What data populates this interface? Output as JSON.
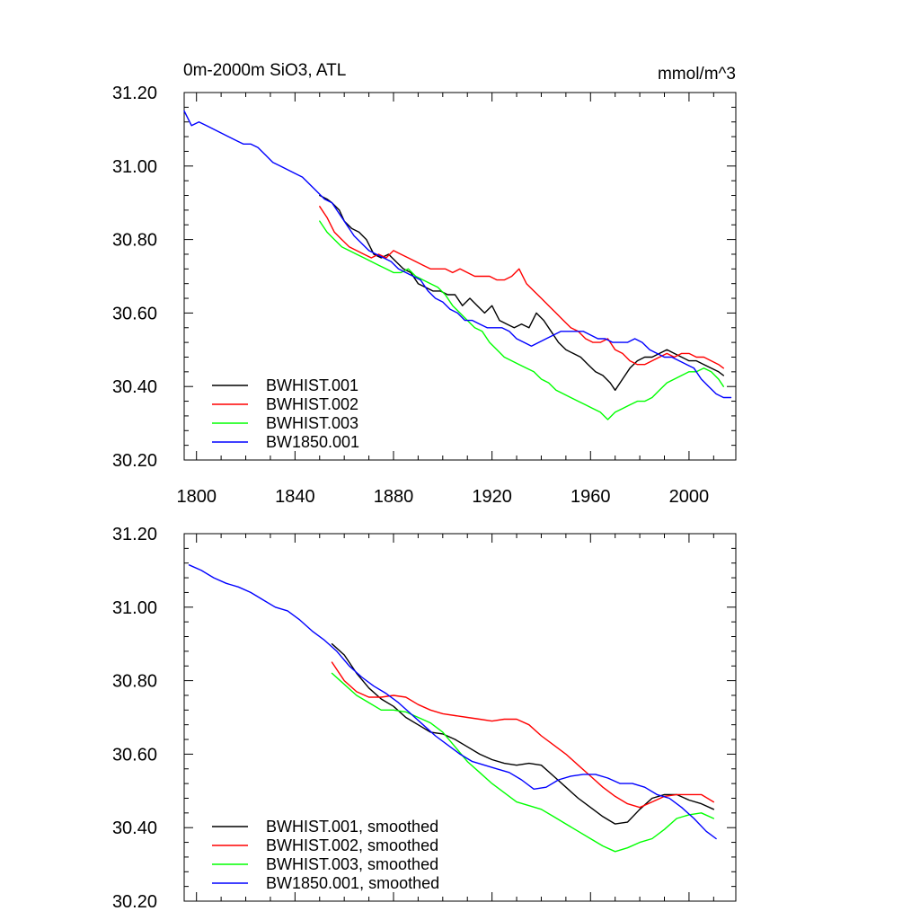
{
  "colors": {
    "BWHIST.001": "#000000",
    "BWHIST.002": "#ff0000",
    "BWHIST.003": "#00ff00",
    "BW1850.001": "#0000ff"
  },
  "chart_data": [
    {
      "type": "line",
      "title": "0m-2000m SiO3, ATL",
      "units": "mmol/m^3",
      "xlim": [
        1795,
        2019
      ],
      "ylim": [
        30.2,
        31.2
      ],
      "x_ticks": [
        1800,
        1840,
        1880,
        1920,
        1960,
        2000
      ],
      "x_tick_labels": [
        "1800",
        "1840",
        "1880",
        "1920",
        "1960",
        "2000"
      ],
      "y_ticks": [
        30.2,
        30.4,
        30.6,
        30.8,
        31.0,
        31.2
      ],
      "y_tick_labels": [
        "30.20",
        "30.40",
        "30.60",
        "30.80",
        "31.00",
        "31.20"
      ],
      "grid": false,
      "legend_position": "bottom-left",
      "series": [
        {
          "name": "BWHIST.001",
          "color": "#000000",
          "x": [
            1850,
            1853,
            1855,
            1858,
            1860,
            1863,
            1866,
            1869,
            1872,
            1875,
            1878,
            1881,
            1884,
            1887,
            1890,
            1893,
            1896,
            1899,
            1902,
            1905,
            1908,
            1911,
            1914,
            1917,
            1920,
            1923,
            1926,
            1929,
            1932,
            1935,
            1938,
            1941,
            1944,
            1947,
            1950,
            1953,
            1956,
            1959,
            1962,
            1965,
            1968,
            1970,
            1973,
            1976,
            1979,
            1982,
            1985,
            1988,
            1991,
            1994,
            1997,
            2000,
            2003,
            2006,
            2009,
            2012,
            2014
          ],
          "y": [
            30.92,
            30.91,
            30.9,
            30.88,
            30.85,
            30.83,
            30.82,
            30.8,
            30.76,
            30.75,
            30.76,
            30.74,
            30.72,
            30.71,
            30.68,
            30.67,
            30.66,
            30.66,
            30.65,
            30.65,
            30.62,
            30.64,
            30.62,
            30.6,
            30.62,
            30.58,
            30.57,
            30.56,
            30.57,
            30.56,
            30.6,
            30.58,
            30.55,
            30.52,
            30.5,
            30.49,
            30.48,
            30.46,
            30.44,
            30.43,
            30.41,
            30.39,
            30.42,
            30.45,
            30.47,
            30.48,
            30.48,
            30.49,
            30.5,
            30.49,
            30.48,
            30.47,
            30.47,
            30.46,
            30.45,
            30.44,
            30.43
          ]
        },
        {
          "name": "BWHIST.002",
          "color": "#ff0000",
          "x": [
            1850,
            1853,
            1856,
            1859,
            1862,
            1865,
            1868,
            1871,
            1874,
            1877,
            1880,
            1883,
            1886,
            1889,
            1892,
            1895,
            1898,
            1901,
            1904,
            1907,
            1910,
            1913,
            1916,
            1919,
            1922,
            1925,
            1928,
            1931,
            1934,
            1937,
            1940,
            1943,
            1946,
            1949,
            1952,
            1955,
            1958,
            1961,
            1964,
            1967,
            1970,
            1973,
            1976,
            1979,
            1982,
            1985,
            1988,
            1991,
            1994,
            1997,
            2000,
            2003,
            2006,
            2009,
            2012,
            2014
          ],
          "y": [
            30.89,
            30.86,
            30.82,
            30.8,
            30.78,
            30.77,
            30.76,
            30.75,
            30.76,
            30.75,
            30.77,
            30.76,
            30.75,
            30.74,
            30.73,
            30.72,
            30.72,
            30.72,
            30.71,
            30.72,
            30.71,
            30.7,
            30.7,
            30.7,
            30.69,
            30.69,
            30.7,
            30.72,
            30.68,
            30.66,
            30.64,
            30.62,
            30.6,
            30.58,
            30.56,
            30.55,
            30.53,
            30.52,
            30.52,
            30.53,
            30.5,
            30.49,
            30.47,
            30.46,
            30.46,
            30.47,
            30.48,
            30.49,
            30.48,
            30.49,
            30.49,
            30.48,
            30.48,
            30.47,
            30.46,
            30.45
          ]
        },
        {
          "name": "BWHIST.003",
          "color": "#00ff00",
          "x": [
            1850,
            1853,
            1856,
            1859,
            1862,
            1865,
            1868,
            1871,
            1874,
            1877,
            1880,
            1883,
            1886,
            1889,
            1892,
            1895,
            1898,
            1901,
            1904,
            1907,
            1910,
            1913,
            1916,
            1919,
            1922,
            1925,
            1928,
            1931,
            1934,
            1937,
            1940,
            1943,
            1946,
            1949,
            1952,
            1955,
            1958,
            1961,
            1964,
            1967,
            1970,
            1973,
            1976,
            1979,
            1982,
            1985,
            1988,
            1991,
            1994,
            1997,
            2000,
            2003,
            2006,
            2009,
            2012,
            2014
          ],
          "y": [
            30.85,
            30.82,
            30.8,
            30.78,
            30.77,
            30.76,
            30.75,
            30.74,
            30.73,
            30.72,
            30.71,
            30.71,
            30.72,
            30.7,
            30.69,
            30.68,
            30.67,
            30.65,
            30.62,
            30.6,
            30.58,
            30.56,
            30.55,
            30.52,
            30.5,
            30.48,
            30.47,
            30.46,
            30.45,
            30.44,
            30.42,
            30.41,
            30.39,
            30.38,
            30.37,
            30.36,
            30.35,
            30.34,
            30.33,
            30.31,
            30.33,
            30.34,
            30.35,
            30.36,
            30.36,
            30.37,
            30.39,
            30.41,
            30.42,
            30.43,
            30.44,
            30.44,
            30.45,
            30.44,
            30.42,
            30.4
          ]
        },
        {
          "name": "BW1850.001",
          "color": "#0000ff",
          "x": [
            1795,
            1798,
            1801,
            1804,
            1807,
            1810,
            1813,
            1816,
            1819,
            1822,
            1825,
            1828,
            1831,
            1834,
            1837,
            1840,
            1843,
            1846,
            1849,
            1852,
            1855,
            1858,
            1861,
            1864,
            1867,
            1870,
            1873,
            1876,
            1879,
            1882,
            1885,
            1888,
            1891,
            1894,
            1897,
            1900,
            1903,
            1906,
            1909,
            1912,
            1915,
            1918,
            1921,
            1924,
            1927,
            1930,
            1933,
            1936,
            1939,
            1942,
            1945,
            1948,
            1951,
            1954,
            1957,
            1960,
            1963,
            1966,
            1969,
            1972,
            1975,
            1978,
            1981,
            1984,
            1987,
            1990,
            1993,
            1996,
            1999,
            2002,
            2005,
            2008,
            2011,
            2014,
            2017
          ],
          "y": [
            31.15,
            31.11,
            31.12,
            31.11,
            31.1,
            31.09,
            31.08,
            31.07,
            31.06,
            31.06,
            31.05,
            31.03,
            31.01,
            31.0,
            30.99,
            30.98,
            30.97,
            30.95,
            30.93,
            30.91,
            30.9,
            30.87,
            30.84,
            30.81,
            30.79,
            30.77,
            30.76,
            30.75,
            30.74,
            30.72,
            30.71,
            30.7,
            30.69,
            30.66,
            30.64,
            30.63,
            30.61,
            30.6,
            30.58,
            30.58,
            30.57,
            30.56,
            30.56,
            30.56,
            30.55,
            30.53,
            30.52,
            30.51,
            30.52,
            30.53,
            30.54,
            30.55,
            30.55,
            30.55,
            30.55,
            30.54,
            30.53,
            30.53,
            30.52,
            30.52,
            30.52,
            30.53,
            30.52,
            30.5,
            30.49,
            30.48,
            30.48,
            30.47,
            30.46,
            30.45,
            30.42,
            30.4,
            30.38,
            30.37,
            30.37
          ]
        }
      ],
      "legend": [
        "BWHIST.001",
        "BWHIST.002",
        "BWHIST.003",
        "BW1850.001"
      ]
    },
    {
      "type": "line",
      "title": "",
      "xlim": [
        1795,
        2019
      ],
      "ylim": [
        30.2,
        31.2
      ],
      "x_ticks": [
        1800,
        1840,
        1880,
        1920,
        1960,
        2000
      ],
      "x_tick_labels": [],
      "y_ticks": [
        30.2,
        30.4,
        30.6,
        30.8,
        31.0,
        31.2
      ],
      "y_tick_labels": [
        "30.20",
        "30.40",
        "30.60",
        "30.80",
        "31.00",
        "31.20"
      ],
      "grid": false,
      "legend_position": "bottom-left",
      "series": [
        {
          "name": "BWHIST.001, smoothed",
          "color": "#000000",
          "x": [
            1855,
            1860,
            1865,
            1870,
            1875,
            1880,
            1885,
            1890,
            1895,
            1900,
            1905,
            1910,
            1915,
            1920,
            1925,
            1930,
            1935,
            1940,
            1945,
            1950,
            1955,
            1960,
            1965,
            1970,
            1975,
            1980,
            1985,
            1990,
            1995,
            2000,
            2005,
            2010
          ],
          "y": [
            30.9,
            30.87,
            30.82,
            30.78,
            30.75,
            30.73,
            30.7,
            30.68,
            30.66,
            30.655,
            30.64,
            30.62,
            30.6,
            30.585,
            30.575,
            30.57,
            30.575,
            30.57,
            30.54,
            30.51,
            30.48,
            30.455,
            30.43,
            30.41,
            30.415,
            30.45,
            30.48,
            30.49,
            30.49,
            30.475,
            30.465,
            30.45
          ]
        },
        {
          "name": "BWHIST.002, smoothed",
          "color": "#ff0000",
          "x": [
            1855,
            1860,
            1865,
            1870,
            1875,
            1880,
            1885,
            1890,
            1895,
            1900,
            1905,
            1910,
            1915,
            1920,
            1925,
            1930,
            1935,
            1940,
            1945,
            1950,
            1955,
            1960,
            1965,
            1970,
            1975,
            1980,
            1985,
            1990,
            1995,
            2000,
            2005,
            2010
          ],
          "y": [
            30.85,
            30.8,
            30.77,
            30.755,
            30.755,
            30.76,
            30.755,
            30.735,
            30.72,
            30.71,
            30.705,
            30.7,
            30.695,
            30.69,
            30.695,
            30.695,
            30.68,
            30.65,
            30.625,
            30.6,
            30.57,
            30.54,
            30.51,
            30.485,
            30.465,
            30.455,
            30.47,
            30.485,
            30.49,
            30.49,
            30.49,
            30.47
          ]
        },
        {
          "name": "BWHIST.003, smoothed",
          "color": "#00ff00",
          "x": [
            1855,
            1860,
            1865,
            1870,
            1875,
            1880,
            1885,
            1890,
            1895,
            1900,
            1905,
            1910,
            1915,
            1920,
            1925,
            1930,
            1935,
            1940,
            1945,
            1950,
            1955,
            1960,
            1965,
            1970,
            1975,
            1980,
            1985,
            1990,
            1995,
            2000,
            2005,
            2010
          ],
          "y": [
            30.82,
            30.79,
            30.76,
            30.74,
            30.72,
            30.72,
            30.715,
            30.7,
            30.685,
            30.66,
            30.62,
            30.58,
            30.55,
            30.52,
            30.495,
            30.47,
            30.46,
            30.45,
            30.43,
            30.41,
            30.39,
            30.37,
            30.35,
            30.335,
            30.345,
            30.36,
            30.37,
            30.395,
            30.425,
            30.435,
            30.44,
            30.425
          ]
        },
        {
          "name": "BW1850.001, smoothed",
          "color": "#0000ff",
          "x": [
            1797,
            1802,
            1807,
            1812,
            1817,
            1822,
            1827,
            1832,
            1837,
            1842,
            1847,
            1852,
            1857,
            1862,
            1867,
            1872,
            1877,
            1882,
            1887,
            1892,
            1897,
            1902,
            1907,
            1912,
            1917,
            1922,
            1927,
            1932,
            1937,
            1942,
            1947,
            1952,
            1957,
            1962,
            1967,
            1972,
            1977,
            1982,
            1987,
            1992,
            1997,
            2002,
            2007,
            2011
          ],
          "y": [
            31.115,
            31.1,
            31.08,
            31.065,
            31.055,
            31.04,
            31.02,
            31.0,
            30.99,
            30.965,
            30.935,
            30.91,
            30.88,
            30.84,
            30.81,
            30.785,
            30.765,
            30.74,
            30.71,
            30.68,
            30.65,
            30.625,
            30.6,
            30.58,
            30.57,
            30.56,
            30.55,
            30.53,
            30.505,
            30.51,
            30.53,
            30.54,
            30.545,
            30.545,
            30.535,
            30.52,
            30.52,
            30.51,
            30.49,
            30.48,
            30.455,
            30.425,
            30.39,
            30.37
          ]
        }
      ],
      "legend": [
        "BWHIST.001, smoothed",
        "BWHIST.002, smoothed",
        "BWHIST.003, smoothed",
        "BW1850.001, smoothed"
      ]
    }
  ]
}
